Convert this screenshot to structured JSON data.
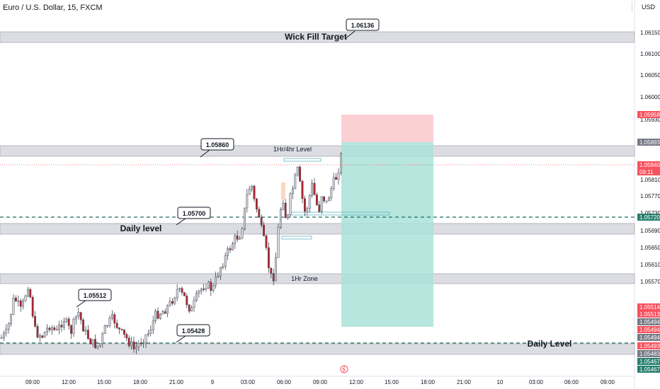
{
  "header": {
    "symbol_title": "Euro / U.S. Dollar, 15, FXCM",
    "currency": "USD"
  },
  "price_axis": {
    "ticks": [
      "1.06150",
      "1.06100",
      "1.06050",
      "1.06000",
      "1.05930",
      "1.05850",
      "1.05810",
      "1.05770",
      "1.05730",
      "1.05690",
      "1.05650",
      "1.05610",
      "1.05570"
    ],
    "labels": [
      {
        "text": "1.05958",
        "bg": "#f7525f",
        "fg": "#ffffff"
      },
      {
        "text": "1.05893",
        "bg": "#787b86",
        "fg": "#ffffff"
      },
      {
        "text": "1.05840",
        "bg": "#f7525f",
        "fg": "#ffffff"
      },
      {
        "text": "09:11",
        "bg": "#f7525f",
        "fg": "#ffffff"
      },
      {
        "text": "1.05720",
        "bg": "#26806e",
        "fg": "#ffffff"
      },
      {
        "text": "1.05514",
        "bg": "#f7525f",
        "fg": "#ffffff"
      },
      {
        "text": "1.05513",
        "bg": "#f7525f",
        "fg": "#ffffff"
      },
      {
        "text": "1.05494",
        "bg": "#787b86",
        "fg": "#ffffff"
      },
      {
        "text": "1.05494",
        "bg": "#f7525f",
        "fg": "#ffffff"
      },
      {
        "text": "1.05494",
        "bg": "#787b86",
        "fg": "#ffffff"
      },
      {
        "text": "1.05493",
        "bg": "#f7525f",
        "fg": "#ffffff"
      },
      {
        "text": "1.05483",
        "bg": "#787b86",
        "fg": "#ffffff"
      },
      {
        "text": "1.05467",
        "bg": "#26806e",
        "fg": "#ffffff"
      },
      {
        "text": "1.05467",
        "bg": "#26806e",
        "fg": "#ffffff"
      }
    ]
  },
  "time_axis": {
    "ticks": [
      "09:00",
      "12:00",
      "15:00",
      "18:00",
      "21:00",
      "9",
      "03:00",
      "06:00",
      "09:00",
      "12:00",
      "15:00",
      "18:00",
      "21:00",
      "10",
      "03:00",
      "06:00",
      "09:00"
    ]
  },
  "annotations": {
    "wick_fill_label": "Wick Fill Target",
    "wick_fill_price": "1.06136",
    "level_1hr4hr_label": "1Hr/4hr Level",
    "level_1hr4hr_price": "1.05860",
    "daily_level_label": "Daily level",
    "daily_level_price": "1.05700",
    "zone_1hr_label": "1Hr Zone",
    "low_callout_1": "1.05512",
    "low_callout_2": "1.05428",
    "daily_level_bottom_label": "Daily Level"
  },
  "colors": {
    "bull": "#d1d4dc",
    "bear": "#b22833",
    "zone_fill": "#dcdde2",
    "tp_fill": "#a9e2d8",
    "sl_fill": "#fbd0d3",
    "dashed_line": "#1e6b5c",
    "price_line": "#f7525f"
  },
  "chart_data": {
    "type": "candlestick",
    "symbol": "EURUSD",
    "interval": "15"
  }
}
